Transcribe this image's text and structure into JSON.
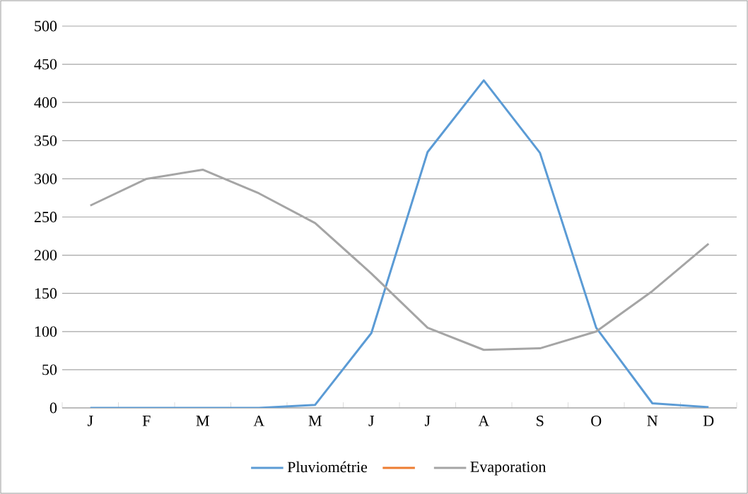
{
  "chart_data": {
    "type": "line",
    "categories": [
      "J",
      "F",
      "M",
      "A",
      "M",
      "J",
      "J",
      "A",
      "S",
      "O",
      "N",
      "D"
    ],
    "series": [
      {
        "name": "Pluviométrie",
        "color": "#5b9bd5",
        "values": [
          0,
          0,
          0,
          0,
          4,
          98,
          335,
          429,
          334,
          105,
          6,
          1
        ]
      },
      {
        "color": "#ed7d31",
        "values": [
          null,
          null,
          null,
          null,
          null,
          null,
          null,
          null,
          null,
          null,
          null,
          null
        ]
      },
      {
        "name": "Evaporation",
        "color": "#a5a5a5",
        "values": [
          265,
          300,
          312,
          281,
          242,
          176,
          105,
          76,
          78,
          100,
          153,
          215
        ]
      }
    ],
    "ylim": [
      0,
      500
    ],
    "yticks": [
      0,
      50,
      100,
      150,
      200,
      250,
      300,
      350,
      400,
      450,
      500
    ],
    "grid": "y",
    "legend": "bottom",
    "marker": "none",
    "line_style": "solid"
  }
}
